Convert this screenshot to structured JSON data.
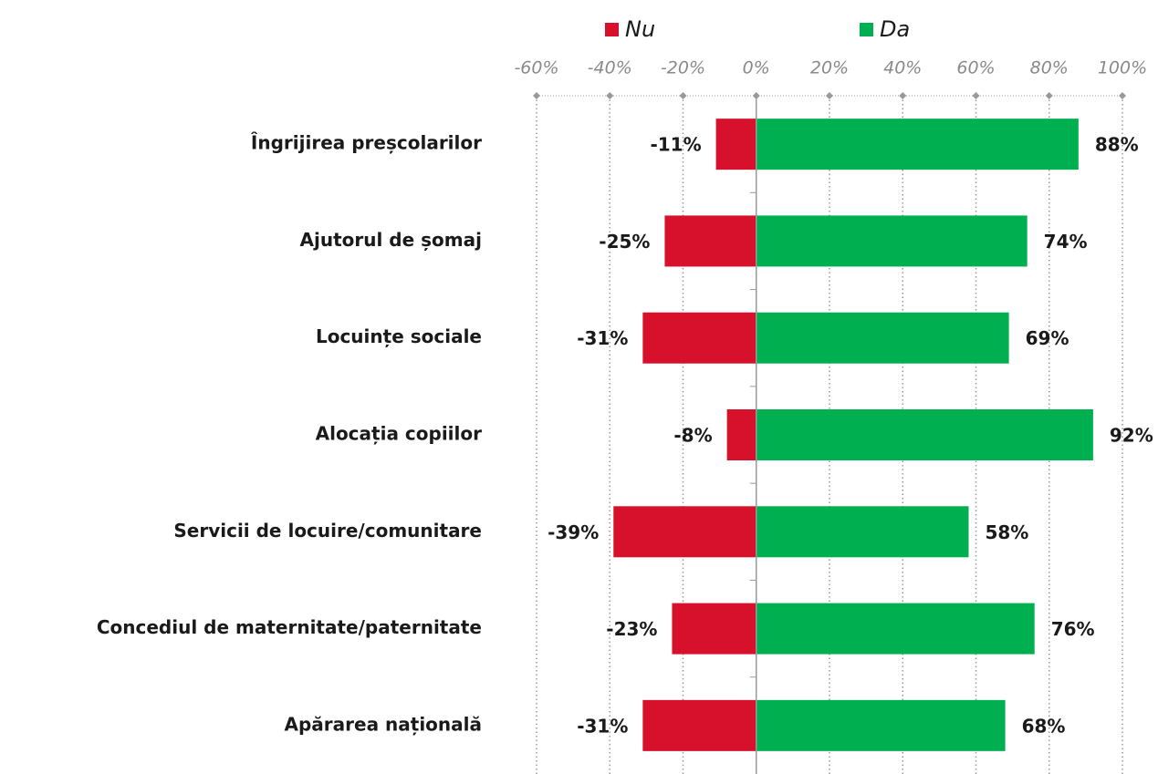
{
  "chart_data": {
    "type": "bar",
    "orientation": "horizontal",
    "categories": [
      "Îngrijirea preșcolarilor",
      "Ajutorul de șomaj",
      "Locuințe sociale",
      "Alocația copiilor",
      "Servicii de locuire/comunitare",
      "Concediul de maternitate/paternitate",
      "Apărarea națională"
    ],
    "series": [
      {
        "name": "Nu",
        "color": "#d7102b",
        "values": [
          -11,
          -25,
          -31,
          -8,
          -39,
          -23,
          -31
        ],
        "value_labels": [
          "-11%",
          "-25%",
          "-31%",
          "-8%",
          "-39%",
          "-23%",
          "-31%"
        ]
      },
      {
        "name": "Da",
        "color": "#00b050",
        "values": [
          88,
          74,
          69,
          92,
          58,
          76,
          68
        ],
        "value_labels": [
          "88%",
          "74%",
          "69%",
          "92%",
          "58%",
          "76%",
          "68%"
        ]
      }
    ],
    "xlim": [
      -60,
      100
    ],
    "xticks": [
      {
        "value": -60,
        "label": "-60%"
      },
      {
        "value": -40,
        "label": "-40%"
      },
      {
        "value": -20,
        "label": "-20%"
      },
      {
        "value": 0,
        "label": "0%"
      },
      {
        "value": 20,
        "label": "20%"
      },
      {
        "value": 40,
        "label": "40%"
      },
      {
        "value": 60,
        "label": "60%"
      },
      {
        "value": 80,
        "label": "80%"
      },
      {
        "value": 100,
        "label": "100%"
      }
    ],
    "grid": true,
    "legend": "top"
  }
}
